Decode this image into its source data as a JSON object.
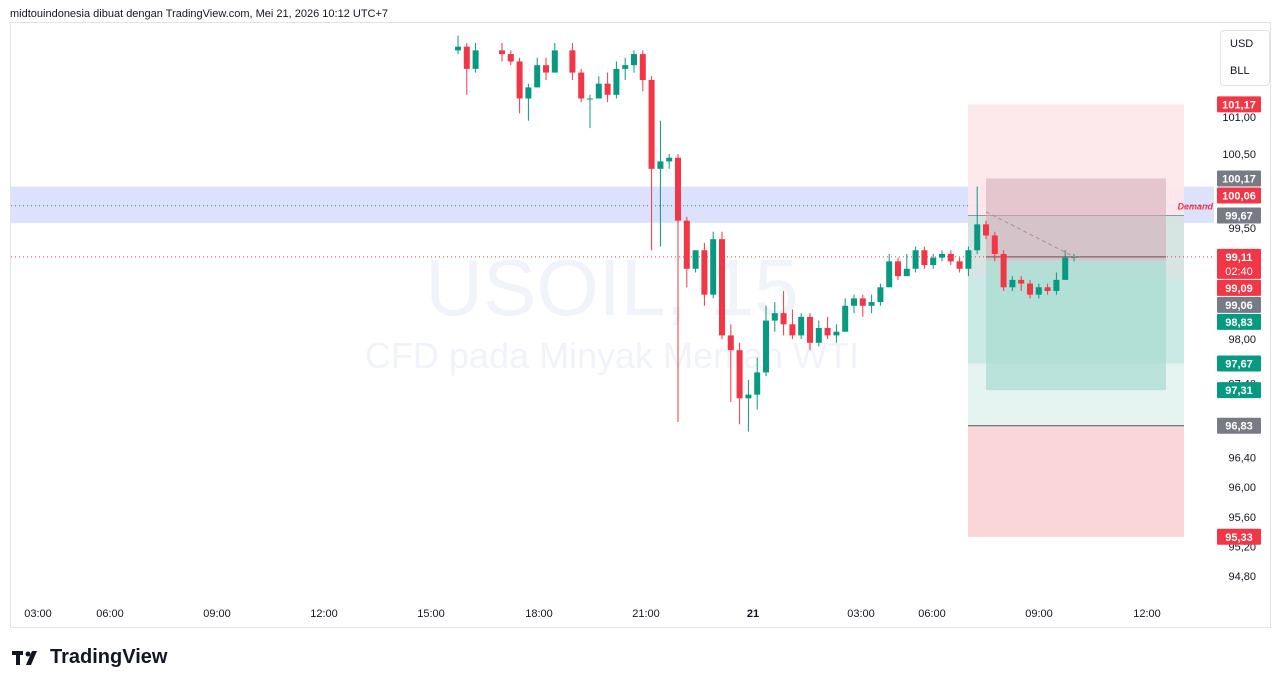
{
  "header": {
    "text": "midtouindonesia dibuat dengan TradingView.com, Mei 21, 2026 10:12 UTC+7"
  },
  "brand": {
    "name": "TradingView"
  },
  "currency_box": {
    "currency": "USD",
    "unit": "BLL"
  },
  "watermark": {
    "symbol": "USOIL, 15",
    "description": "CFD pada Minyak Mentah WTI"
  },
  "zone_label": "Demand",
  "colors": {
    "up": "#089981",
    "down": "#f23645",
    "demand": "#d6dcfc",
    "profit": "#b7e2da",
    "loss": "#fbd6d9",
    "neutral": "#787b86"
  },
  "chart_data": {
    "type": "candlestick",
    "ylim": [
      94.6,
      101.9
    ],
    "y_ticks": [
      "101,00",
      "100,50",
      "99,50",
      "98,00",
      "97,40",
      "96,40",
      "96,00",
      "95,60",
      "95,20",
      "94,80"
    ],
    "x_ticks": [
      {
        "label": "03:00",
        "bold": false
      },
      {
        "label": "06:00",
        "bold": false
      },
      {
        "label": "09:00",
        "bold": false
      },
      {
        "label": "12:00",
        "bold": false
      },
      {
        "label": "15:00",
        "bold": false
      },
      {
        "label": "18:00",
        "bold": false
      },
      {
        "label": "21:00",
        "bold": false
      },
      {
        "label": "21",
        "bold": true
      },
      {
        "label": "03:00",
        "bold": false
      },
      {
        "label": "06:00",
        "bold": false
      },
      {
        "label": "09:00",
        "bold": false
      },
      {
        "label": "12:00",
        "bold": false
      }
    ],
    "price_labels": [
      {
        "text": "101,17",
        "value": 101.17,
        "color": "#f23645"
      },
      {
        "text": "100,17",
        "value": 100.17,
        "color": "#787b86"
      },
      {
        "text": "100,06",
        "value": 100.06,
        "color": "#f23645"
      },
      {
        "text": "99,67",
        "value": 99.67,
        "color": "#787b86"
      },
      {
        "text": "99,11",
        "value": 99.11,
        "color": "#f23645",
        "sub": "02:40"
      },
      {
        "text": "99,09",
        "value": 99.09,
        "color": "#f23645"
      },
      {
        "text": "99,06",
        "value": 99.06,
        "color": "#787b86"
      },
      {
        "text": "98,83",
        "value": 98.83,
        "color": "#089981"
      },
      {
        "text": "97,67",
        "value": 97.67,
        "color": "#089981"
      },
      {
        "text": "97,31",
        "value": 97.31,
        "color": "#089981"
      },
      {
        "text": "96,83",
        "value": 96.83,
        "color": "#787b86"
      },
      {
        "text": "95,33",
        "value": 95.33,
        "color": "#f23645"
      }
    ],
    "demand_zone": [
      99.57,
      100.06
    ],
    "current_price": 99.11,
    "positions": [
      {
        "entry": 98.83,
        "stop": 95.33,
        "target": 101.17
      },
      {
        "entry": 99.06,
        "stop": 100.17,
        "target": 97.31
      }
    ],
    "candles": [
      {
        "t": 0,
        "o": 101.9,
        "h": 102.1,
        "l": 101.85,
        "c": 101.95
      },
      {
        "t": 1,
        "o": 101.95,
        "h": 102.0,
        "l": 101.3,
        "c": 101.65
      },
      {
        "t": 2,
        "o": 101.65,
        "h": 102.0,
        "l": 101.6,
        "c": 101.9
      },
      {
        "t": 5,
        "o": 101.9,
        "h": 102.0,
        "l": 101.75,
        "c": 101.85
      },
      {
        "t": 6,
        "o": 101.85,
        "h": 101.9,
        "l": 101.7,
        "c": 101.75
      },
      {
        "t": 7,
        "o": 101.75,
        "h": 101.8,
        "l": 101.05,
        "c": 101.25
      },
      {
        "t": 8,
        "o": 101.25,
        "h": 101.45,
        "l": 100.95,
        "c": 101.4
      },
      {
        "t": 9,
        "o": 101.4,
        "h": 101.8,
        "l": 101.4,
        "c": 101.7
      },
      {
        "t": 10,
        "o": 101.7,
        "h": 101.8,
        "l": 101.5,
        "c": 101.6
      },
      {
        "t": 11,
        "o": 101.6,
        "h": 102.0,
        "l": 101.6,
        "c": 101.9
      },
      {
        "t": 13,
        "o": 101.9,
        "h": 102.0,
        "l": 101.5,
        "c": 101.6
      },
      {
        "t": 14,
        "o": 101.6,
        "h": 101.65,
        "l": 101.2,
        "c": 101.25
      },
      {
        "t": 15,
        "o": 101.25,
        "h": 101.3,
        "l": 100.85,
        "c": 101.25
      },
      {
        "t": 16,
        "o": 101.25,
        "h": 101.55,
        "l": 101.25,
        "c": 101.45
      },
      {
        "t": 17,
        "o": 101.45,
        "h": 101.6,
        "l": 101.2,
        "c": 101.3
      },
      {
        "t": 18,
        "o": 101.3,
        "h": 101.75,
        "l": 101.25,
        "c": 101.65
      },
      {
        "t": 19,
        "o": 101.65,
        "h": 101.8,
        "l": 101.5,
        "c": 101.7
      },
      {
        "t": 20,
        "o": 101.7,
        "h": 101.9,
        "l": 101.6,
        "c": 101.85
      },
      {
        "t": 21,
        "o": 101.85,
        "h": 101.9,
        "l": 101.35,
        "c": 101.5
      },
      {
        "t": 22,
        "o": 101.5,
        "h": 101.55,
        "l": 99.2,
        "c": 100.3
      },
      {
        "t": 23,
        "o": 100.3,
        "h": 100.95,
        "l": 99.25,
        "c": 100.4
      },
      {
        "t": 24,
        "o": 100.4,
        "h": 100.5,
        "l": 100.3,
        "c": 100.45
      },
      {
        "t": 25,
        "o": 100.45,
        "h": 100.5,
        "l": 96.88,
        "c": 99.6
      },
      {
        "t": 26,
        "o": 99.6,
        "h": 99.65,
        "l": 98.7,
        "c": 98.95
      },
      {
        "t": 27,
        "o": 98.95,
        "h": 99.2,
        "l": 98.9,
        "c": 99.2
      },
      {
        "t": 28,
        "o": 99.2,
        "h": 99.3,
        "l": 98.45,
        "c": 98.6
      },
      {
        "t": 29,
        "o": 98.6,
        "h": 99.45,
        "l": 98.55,
        "c": 99.35
      },
      {
        "t": 30,
        "o": 99.35,
        "h": 99.45,
        "l": 98.0,
        "c": 98.05
      },
      {
        "t": 31,
        "o": 98.05,
        "h": 98.2,
        "l": 97.15,
        "c": 97.85
      },
      {
        "t": 32,
        "o": 97.85,
        "h": 97.95,
        "l": 96.85,
        "c": 97.2
      },
      {
        "t": 33,
        "o": 97.2,
        "h": 97.45,
        "l": 96.75,
        "c": 97.25
      },
      {
        "t": 34,
        "o": 97.25,
        "h": 97.75,
        "l": 97.05,
        "c": 97.55
      },
      {
        "t": 35,
        "o": 97.55,
        "h": 98.45,
        "l": 97.5,
        "c": 98.25
      },
      {
        "t": 36,
        "o": 98.25,
        "h": 98.5,
        "l": 98.1,
        "c": 98.35
      },
      {
        "t": 37,
        "o": 98.35,
        "h": 98.65,
        "l": 98.05,
        "c": 98.2
      },
      {
        "t": 38,
        "o": 98.2,
        "h": 98.4,
        "l": 98.0,
        "c": 98.05
      },
      {
        "t": 39,
        "o": 98.05,
        "h": 98.35,
        "l": 98.0,
        "c": 98.3
      },
      {
        "t": 40,
        "o": 98.3,
        "h": 98.35,
        "l": 97.85,
        "c": 97.95
      },
      {
        "t": 41,
        "o": 97.95,
        "h": 98.25,
        "l": 97.9,
        "c": 98.15
      },
      {
        "t": 42,
        "o": 98.15,
        "h": 98.3,
        "l": 98.0,
        "c": 98.05
      },
      {
        "t": 43,
        "o": 98.05,
        "h": 98.2,
        "l": 97.95,
        "c": 98.1
      },
      {
        "t": 44,
        "o": 98.1,
        "h": 98.55,
        "l": 98.1,
        "c": 98.45
      },
      {
        "t": 45,
        "o": 98.45,
        "h": 98.6,
        "l": 98.35,
        "c": 98.55
      },
      {
        "t": 46,
        "o": 98.55,
        "h": 98.6,
        "l": 98.3,
        "c": 98.45
      },
      {
        "t": 47,
        "o": 98.45,
        "h": 98.6,
        "l": 98.35,
        "c": 98.5
      },
      {
        "t": 48,
        "o": 98.5,
        "h": 98.75,
        "l": 98.45,
        "c": 98.7
      },
      {
        "t": 49,
        "o": 98.7,
        "h": 99.15,
        "l": 98.7,
        "c": 99.05
      },
      {
        "t": 50,
        "o": 99.05,
        "h": 99.1,
        "l": 98.8,
        "c": 98.85
      },
      {
        "t": 51,
        "o": 98.85,
        "h": 99.15,
        "l": 98.85,
        "c": 98.95
      },
      {
        "t": 52,
        "o": 98.95,
        "h": 99.25,
        "l": 98.9,
        "c": 99.2
      },
      {
        "t": 53,
        "o": 99.2,
        "h": 99.25,
        "l": 98.95,
        "c": 99.0
      },
      {
        "t": 54,
        "o": 99.0,
        "h": 99.15,
        "l": 98.95,
        "c": 99.1
      },
      {
        "t": 55,
        "o": 99.1,
        "h": 99.2,
        "l": 99.05,
        "c": 99.15
      },
      {
        "t": 56,
        "o": 99.15,
        "h": 99.2,
        "l": 99.0,
        "c": 99.05
      },
      {
        "t": 57,
        "o": 99.05,
        "h": 99.1,
        "l": 98.9,
        "c": 98.95
      },
      {
        "t": 58,
        "o": 98.95,
        "h": 99.25,
        "l": 98.85,
        "c": 99.2
      },
      {
        "t": 59,
        "o": 99.2,
        "h": 100.06,
        "l": 99.15,
        "c": 99.55
      },
      {
        "t": 60,
        "o": 99.55,
        "h": 99.6,
        "l": 99.35,
        "c": 99.4
      },
      {
        "t": 61,
        "o": 99.4,
        "h": 99.45,
        "l": 99.05,
        "c": 99.15
      },
      {
        "t": 62,
        "o": 99.15,
        "h": 99.2,
        "l": 98.65,
        "c": 98.7
      },
      {
        "t": 63,
        "o": 98.7,
        "h": 98.85,
        "l": 98.65,
        "c": 98.8
      },
      {
        "t": 64,
        "o": 98.8,
        "h": 98.85,
        "l": 98.65,
        "c": 98.75
      },
      {
        "t": 65,
        "o": 98.75,
        "h": 98.8,
        "l": 98.55,
        "c": 98.6
      },
      {
        "t": 66,
        "o": 98.6,
        "h": 98.75,
        "l": 98.55,
        "c": 98.7
      },
      {
        "t": 67,
        "o": 98.7,
        "h": 98.75,
        "l": 98.6,
        "c": 98.65
      },
      {
        "t": 68,
        "o": 98.65,
        "h": 98.9,
        "l": 98.6,
        "c": 98.8
      },
      {
        "t": 69,
        "o": 98.8,
        "h": 99.2,
        "l": 98.8,
        "c": 99.1
      },
      {
        "t": 70,
        "o": 99.1,
        "h": 99.15,
        "l": 99.05,
        "c": 99.11
      }
    ]
  }
}
